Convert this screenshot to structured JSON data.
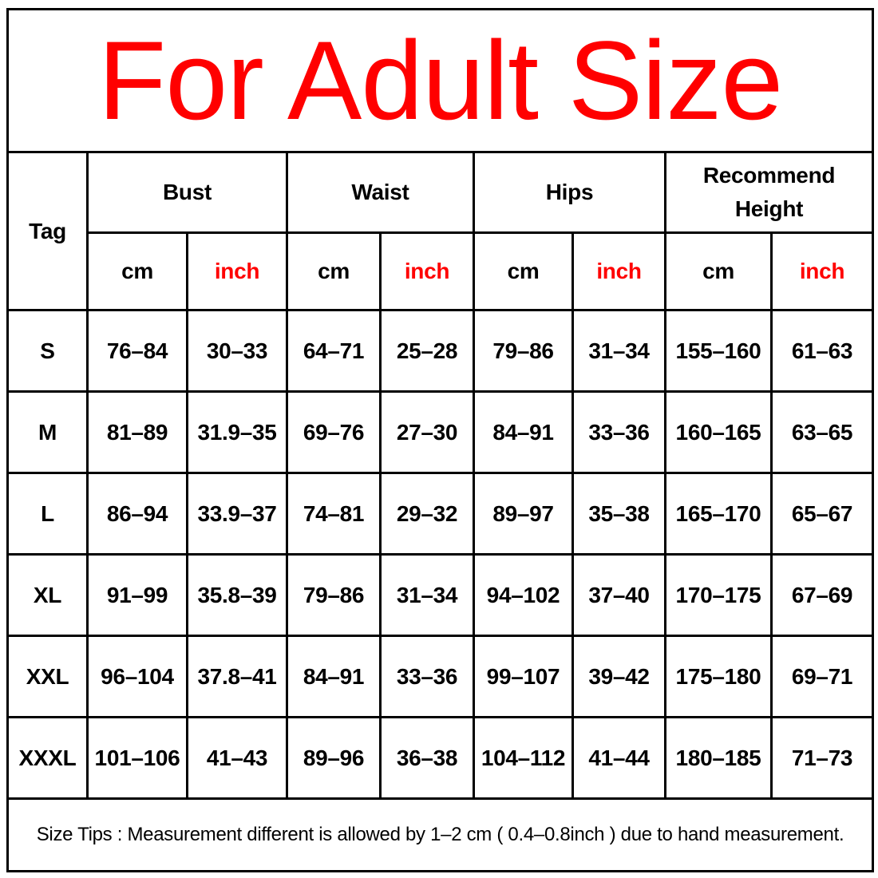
{
  "title": "For Adult Size",
  "headers": {
    "tag": "Tag",
    "groups": [
      "Bust",
      "Waist",
      "Hips",
      "Recommend Height"
    ],
    "units": [
      "cm",
      "inch"
    ]
  },
  "rows": [
    {
      "tag": "S",
      "values": [
        "76–84",
        "30–33",
        "64–71",
        "25–28",
        "79–86",
        "31–34",
        "155–160",
        "61–63"
      ]
    },
    {
      "tag": "M",
      "values": [
        "81–89",
        "31.9–35",
        "69–76",
        "27–30",
        "84–91",
        "33–36",
        "160–165",
        "63–65"
      ]
    },
    {
      "tag": "L",
      "values": [
        "86–94",
        "33.9–37",
        "74–81",
        "29–32",
        "89–97",
        "35–38",
        "165–170",
        "65–67"
      ]
    },
    {
      "tag": "XL",
      "values": [
        "91–99",
        "35.8–39",
        "79–86",
        "31–34",
        "94–102",
        "37–40",
        "170–175",
        "67–69"
      ]
    },
    {
      "tag": "XXL",
      "values": [
        "96–104",
        "37.8–41",
        "84–91",
        "33–36",
        "99–107",
        "39–42",
        "175–180",
        "69–71"
      ]
    },
    {
      "tag": "XXXL",
      "values": [
        "101–106",
        "41–43",
        "89–96",
        "36–38",
        "104–112",
        "41–44",
        "180–185",
        "71–73"
      ]
    }
  ],
  "footer": "Size Tips : Measurement different is allowed by 1–2 cm ( 0.4–0.8inch ) due to hand measurement.",
  "colors": {
    "accent": "#ff0000",
    "text": "#000000"
  }
}
